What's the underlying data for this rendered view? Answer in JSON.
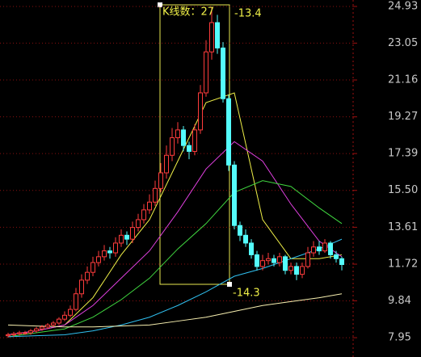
{
  "chart_data": {
    "type": "candlestick",
    "annotations": {
      "count": "K线数：27",
      "top": "-13.4",
      "bottom": "-14.3"
    },
    "up_color": "#ff3c3c",
    "down_color": "#54fcfc",
    "open": [
      8.05,
      8.1,
      8.15,
      8.2,
      8.2,
      8.3,
      8.4,
      8.5,
      8.6,
      8.7,
      8.9,
      9.1,
      9.4,
      10.2,
      10.9,
      11.3,
      11.8,
      12.1,
      12.4,
      12.3,
      12.8,
      13.2,
      13.0,
      13.6,
      14.0,
      14.5,
      14.9,
      15.6,
      16.4,
      17.3,
      18.2,
      18.6,
      17.8,
      17.5,
      18.6,
      20.5,
      22.6,
      24.1,
      22.8,
      20.2,
      16.8,
      13.7,
      13.2,
      12.8,
      12.2,
      11.6,
      11.9,
      12.0,
      11.8,
      12.1,
      11.4,
      11.6,
      11.2,
      11.6,
      12.3,
      12.6,
      12.4,
      12.8,
      12.2,
      12.0
    ],
    "high": [
      8.2,
      8.25,
      8.3,
      8.3,
      8.4,
      8.5,
      8.6,
      8.7,
      8.8,
      9.0,
      9.3,
      9.6,
      10.5,
      11.2,
      11.6,
      12.1,
      12.4,
      12.7,
      12.6,
      13.1,
      13.5,
      13.4,
      13.9,
      14.3,
      14.8,
      15.3,
      16.0,
      16.9,
      17.8,
      18.7,
      19.0,
      18.8,
      18.0,
      18.9,
      20.9,
      23.2,
      24.9,
      24.5,
      23.1,
      20.4,
      17.0,
      13.9,
      13.5,
      13.0,
      12.4,
      12.2,
      12.3,
      12.2,
      12.3,
      12.2,
      11.8,
      11.8,
      11.8,
      12.6,
      12.9,
      12.9,
      13.0,
      12.9,
      12.4,
      12.1
    ],
    "low": [
      7.95,
      8.0,
      8.05,
      8.1,
      8.1,
      8.2,
      8.3,
      8.4,
      8.5,
      8.6,
      8.8,
      9.0,
      9.3,
      10.0,
      10.7,
      11.1,
      11.6,
      11.9,
      12.0,
      12.1,
      12.6,
      12.7,
      12.8,
      13.4,
      13.8,
      14.3,
      14.7,
      15.4,
      16.1,
      17.0,
      17.9,
      17.5,
      17.1,
      17.3,
      18.4,
      20.3,
      22.2,
      22.5,
      20.0,
      16.5,
      13.5,
      12.9,
      12.6,
      12.0,
      11.4,
      11.4,
      11.7,
      11.6,
      11.6,
      11.2,
      11.2,
      10.9,
      11.0,
      11.5,
      12.1,
      12.2,
      12.3,
      12.0,
      11.8,
      11.4
    ],
    "close": [
      8.1,
      8.15,
      8.2,
      8.2,
      8.3,
      8.4,
      8.5,
      8.6,
      8.7,
      8.9,
      9.1,
      9.4,
      10.2,
      10.9,
      11.3,
      11.8,
      12.1,
      12.4,
      12.3,
      12.8,
      13.2,
      13.0,
      13.6,
      14.0,
      14.5,
      14.9,
      15.6,
      16.4,
      17.3,
      18.2,
      18.6,
      17.8,
      17.5,
      18.6,
      20.5,
      22.6,
      24.1,
      22.8,
      20.2,
      16.8,
      13.7,
      13.2,
      12.8,
      12.2,
      11.6,
      11.9,
      12.0,
      11.8,
      12.1,
      11.4,
      11.6,
      11.2,
      11.6,
      12.3,
      12.6,
      12.4,
      12.8,
      12.2,
      12.0,
      11.7
    ],
    "series": [
      {
        "color": "#f0f048",
        "x": [
          0,
          5,
          10,
          15,
          20,
          25,
          30,
          35,
          40,
          45,
          50,
          55,
          59
        ],
        "values": [
          8.1,
          8.3,
          8.6,
          10.0,
          12.2,
          14.0,
          17.0,
          20.0,
          20.5,
          14.0,
          12.0,
          12.0,
          12.2
        ]
      },
      {
        "color": "#e040e0",
        "x": [
          0,
          5,
          10,
          15,
          20,
          25,
          30,
          35,
          40,
          45,
          50,
          55,
          59
        ],
        "values": [
          8.1,
          8.3,
          8.6,
          9.6,
          11.0,
          12.4,
          14.4,
          16.6,
          18.0,
          17.0,
          14.8,
          12.9,
          12.1
        ]
      },
      {
        "color": "#40d840",
        "x": [
          0,
          5,
          10,
          15,
          20,
          25,
          30,
          35,
          40,
          45,
          50,
          55,
          59
        ],
        "values": [
          8.0,
          8.2,
          8.4,
          9.0,
          9.9,
          11.0,
          12.5,
          13.8,
          15.4,
          16.0,
          15.7,
          14.6,
          13.8
        ]
      },
      {
        "color": "#30c0f0",
        "x": [
          0,
          5,
          10,
          15,
          20,
          25,
          30,
          35,
          40,
          45,
          50,
          55,
          59
        ],
        "values": [
          8.0,
          8.05,
          8.1,
          8.3,
          8.6,
          9.0,
          9.6,
          10.3,
          11.1,
          11.5,
          12.0,
          12.5,
          13.0
        ]
      },
      {
        "color": "#f8f0b0",
        "x": [
          0,
          5,
          10,
          15,
          20,
          25,
          30,
          35,
          40,
          45,
          50,
          55,
          59
        ],
        "values": [
          8.6,
          8.55,
          8.5,
          8.5,
          8.55,
          8.6,
          8.8,
          9.0,
          9.3,
          9.6,
          9.8,
          10.0,
          10.2
        ]
      }
    ],
    "ylim": [
      6.96,
      25.26
    ],
    "yticks": [
      24.93,
      23.05,
      21.16,
      19.27,
      17.39,
      {
        "value": 15.5,
        "label": "15.50"
      },
      13.61,
      11.72,
      9.84,
      7.95
    ],
    "grid": true
  }
}
